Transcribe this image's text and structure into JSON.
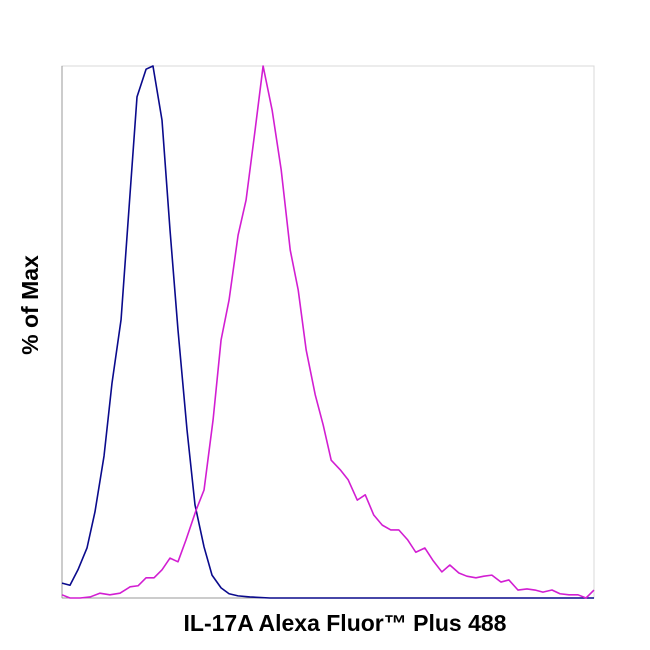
{
  "chart_data": {
    "type": "line",
    "x_label": "IL-17A Alexa Fluor™ Plus 488",
    "y_label": "% of Max",
    "xlim": [
      0,
      100
    ],
    "ylim": [
      0,
      100
    ],
    "series": [
      {
        "color": "#0a0a8c",
        "x": [
          0,
          1.5,
          3.0,
          4.7,
          6.2,
          7.9,
          9.4,
          11.1,
          12.6,
          14.1,
          15.8,
          17.1,
          18.8,
          20.3,
          21.8,
          23.5,
          25.0,
          26.7,
          28.2,
          29.9,
          31.4,
          33.1,
          35.3,
          39.1,
          100
        ],
        "values": [
          2.8,
          2.4,
          5.3,
          9.4,
          16.2,
          26.7,
          40.4,
          52.3,
          73.3,
          94.2,
          99.4,
          100,
          89.8,
          69.2,
          50.4,
          31.6,
          17.5,
          9.6,
          4.3,
          1.9,
          0.8,
          0.4,
          0.2,
          0,
          0
        ]
      },
      {
        "color": "#d21ed2",
        "x": [
          0,
          1.5,
          3.4,
          5.3,
          7.1,
          9.0,
          10.9,
          12.8,
          14.3,
          15.8,
          17.3,
          18.8,
          20.3,
          21.8,
          23.3,
          25.2,
          26.7,
          28.4,
          29.9,
          31.4,
          33.1,
          34.6,
          36.3,
          37.8,
          39.5,
          41.2,
          42.9,
          44.4,
          45.9,
          47.6,
          49.1,
          50.6,
          52.3,
          53.8,
          55.5,
          57.0,
          58.6,
          60.2,
          61.8,
          63.3,
          65.0,
          66.5,
          68.2,
          69.7,
          71.4,
          72.9,
          74.6,
          76.1,
          77.8,
          79.3,
          80.8,
          82.5,
          84.0,
          85.7,
          87.4,
          88.9,
          90.4,
          92.1,
          93.6,
          95.3,
          97.0,
          98.5,
          100
        ],
        "values": [
          0.6,
          0,
          0,
          0.2,
          0.9,
          0.6,
          0.9,
          2.1,
          2.3,
          3.8,
          3.8,
          5.3,
          7.5,
          6.8,
          10.9,
          16.5,
          20.3,
          33.5,
          48.5,
          56.0,
          68.2,
          74.8,
          88.0,
          100,
          91.7,
          80.5,
          65.4,
          57.9,
          46.6,
          38.2,
          32.5,
          25.9,
          24.1,
          22.2,
          18.4,
          19.4,
          15.6,
          13.7,
          12.8,
          12.8,
          10.9,
          8.6,
          9.4,
          7.1,
          4.9,
          6.2,
          4.7,
          4.1,
          3.8,
          4.1,
          4.3,
          3.0,
          3.4,
          1.5,
          1.7,
          1.5,
          1.1,
          1.5,
          0.8,
          0.6,
          0.6,
          0,
          1.5
        ]
      }
    ]
  }
}
